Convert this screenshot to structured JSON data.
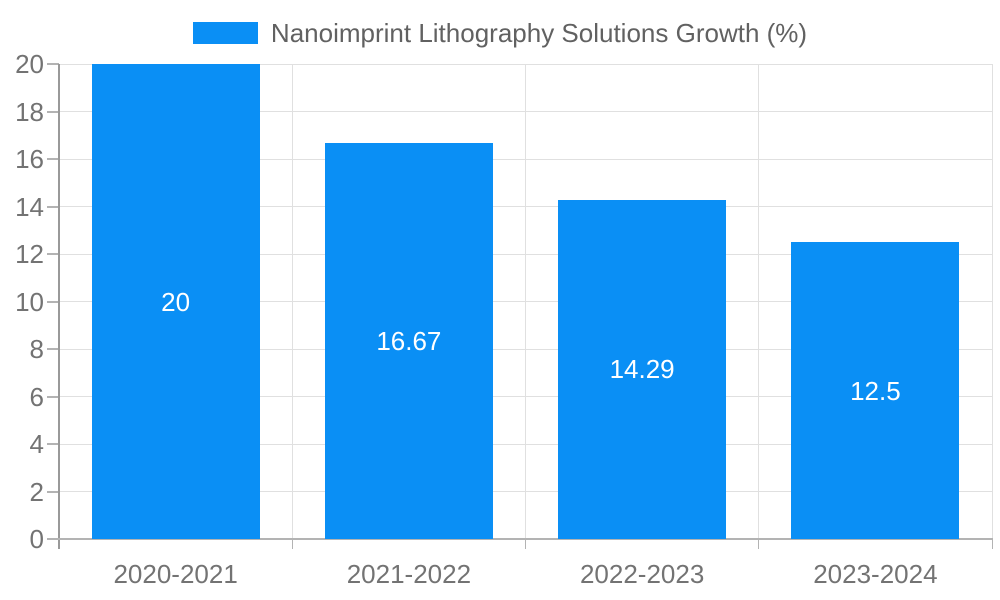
{
  "legend": {
    "label": "Nanoimprint Lithography Solutions Growth (%)"
  },
  "colors": {
    "bar": "#0a8ff5",
    "grid": "#e0e0e0",
    "y_axis_line": "#999999",
    "x_axis_line": "#b3b3b3",
    "tick": "#b3b3b3",
    "tick_text": "#737373",
    "legend_text": "#616161",
    "value_label_text": "#ffffff",
    "background": "#ffffff"
  },
  "chart_data": {
    "type": "bar",
    "title": "Nanoimprint Lithography Solutions Growth (%)",
    "categories": [
      "2020-2021",
      "2021-2022",
      "2022-2023",
      "2023-2024"
    ],
    "values": [
      20,
      16.67,
      14.29,
      12.5
    ],
    "value_labels": [
      "20",
      "16.67",
      "14.29",
      "12.5"
    ],
    "xlabel": "",
    "ylabel": "",
    "ylim": [
      0,
      20
    ],
    "ytick_step": 2,
    "grid": true,
    "legend_position": "top"
  }
}
